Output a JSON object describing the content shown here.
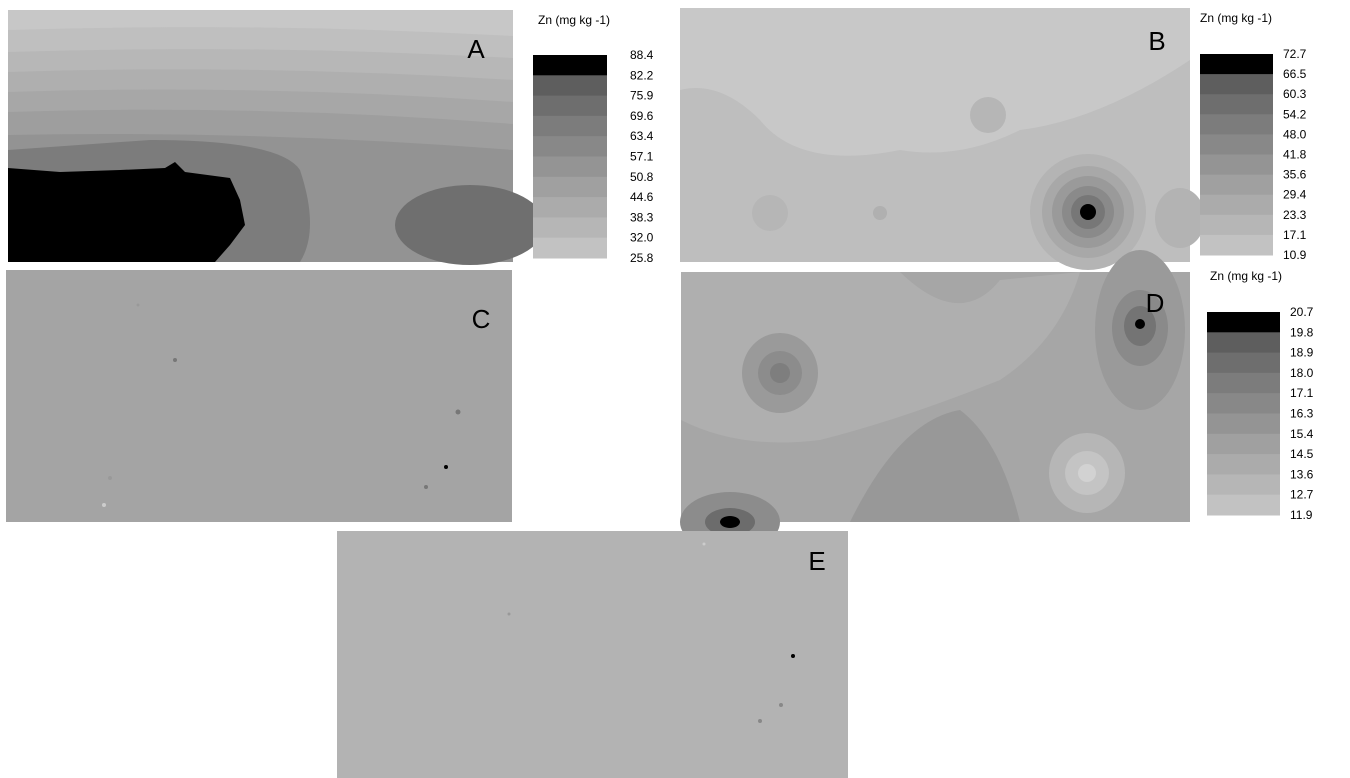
{
  "panels": [
    {
      "label": "A"
    },
    {
      "label": "B"
    },
    {
      "label": "C"
    },
    {
      "label": "D"
    },
    {
      "label": "E"
    }
  ],
  "legends": [
    {
      "title": "Zn (mg kg -1)",
      "breaks": [
        "88.4",
        "82.2",
        "75.9",
        "69.6",
        "63.4",
        "57.1",
        "50.8",
        "44.6",
        "38.3",
        "32.0",
        "25.8"
      ]
    },
    {
      "title": "Zn (mg kg -1)",
      "breaks": [
        "72.7",
        "66.5",
        "60.3",
        "54.2",
        "48.0",
        "41.8",
        "35.6",
        "29.4",
        "23.3",
        "17.1",
        "10.9"
      ]
    },
    {
      "title": "Zn (mg kg -1)",
      "breaks": [
        "20.7",
        "19.8",
        "18.9",
        "18.0",
        "17.1",
        "16.3",
        "15.4",
        "14.5",
        "13.6",
        "12.7",
        "11.9"
      ]
    }
  ]
}
